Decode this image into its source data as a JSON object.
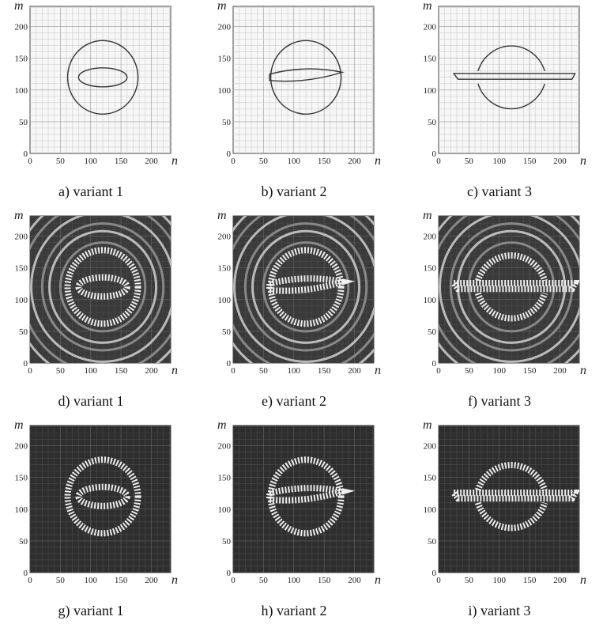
{
  "axes": {
    "x_label": "n",
    "y_label": "m",
    "ticks": [
      0,
      50,
      100,
      150,
      200
    ]
  },
  "panels": [
    {
      "caption": "a) variant 1"
    },
    {
      "caption": "b) variant 2"
    },
    {
      "caption": "c) variant 3"
    },
    {
      "caption": "d) variant 1"
    },
    {
      "caption": "e) variant 2"
    },
    {
      "caption": "f) variant 3"
    },
    {
      "caption": "g) variant 1"
    },
    {
      "caption": "h) variant 2"
    },
    {
      "caption": "i) variant 3"
    }
  ]
}
